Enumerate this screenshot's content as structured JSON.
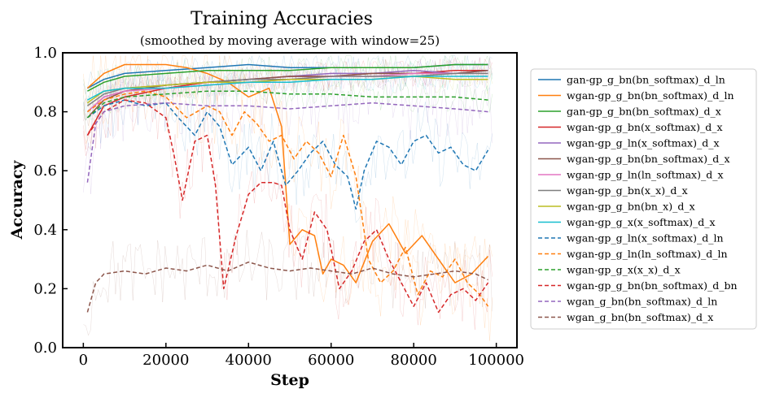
{
  "chart_data": {
    "type": "line",
    "title": "Training Accuracies",
    "subtitle": "(smoothed by moving average with window=25)",
    "xlabel": "Step",
    "ylabel": "Accuracy",
    "xlim": [
      -5000,
      105000
    ],
    "ylim": [
      0.0,
      1.0
    ],
    "xticks": [
      0,
      20000,
      40000,
      60000,
      80000,
      100000
    ],
    "xtick_labels": [
      "0",
      "20000",
      "40000",
      "60000",
      "80000",
      "100000"
    ],
    "yticks": [
      0.0,
      0.2,
      0.4,
      0.6,
      0.8,
      1.0
    ],
    "ytick_labels": [
      "0.0",
      "0.2",
      "0.4",
      "0.6",
      "0.8",
      "1.0"
    ],
    "grid": false,
    "legend_position": "right",
    "series": [
      {
        "name": "gan-gp_g_bn(bn_softmax)_d_ln",
        "color": "#1f77b4",
        "dash": "solid",
        "x": [
          1000,
          5000,
          10000,
          20000,
          30000,
          40000,
          50000,
          60000,
          70000,
          80000,
          90000,
          98000
        ],
        "y": [
          0.88,
          0.91,
          0.93,
          0.94,
          0.95,
          0.96,
          0.95,
          0.95,
          0.95,
          0.95,
          0.96,
          0.96
        ]
      },
      {
        "name": "wgan-gp_g_bn(bn_softmax)_d_ln",
        "color": "#ff7f0e",
        "dash": "solid",
        "x": [
          1000,
          5000,
          10000,
          15000,
          20000,
          25000,
          30000,
          35000,
          40000,
          45000,
          48000,
          50000,
          53000,
          56000,
          58000,
          60000,
          63000,
          66000,
          70000,
          74000,
          78000,
          82000,
          86000,
          90000,
          94000,
          98000
        ],
        "y": [
          0.88,
          0.93,
          0.96,
          0.96,
          0.96,
          0.95,
          0.93,
          0.9,
          0.85,
          0.88,
          0.75,
          0.35,
          0.4,
          0.38,
          0.25,
          0.3,
          0.28,
          0.22,
          0.36,
          0.42,
          0.32,
          0.38,
          0.3,
          0.22,
          0.25,
          0.31
        ]
      },
      {
        "name": "gan-gp_g_bn(bn_softmax)_d_x",
        "color": "#2ca02c",
        "dash": "solid",
        "x": [
          1000,
          5000,
          10000,
          20000,
          30000,
          40000,
          50000,
          60000,
          70000,
          80000,
          90000,
          98000
        ],
        "y": [
          0.87,
          0.9,
          0.92,
          0.93,
          0.94,
          0.94,
          0.94,
          0.95,
          0.95,
          0.95,
          0.96,
          0.96
        ]
      },
      {
        "name": "wgan-gp_g_bn(x_softmax)_d_x",
        "color": "#d62728",
        "dash": "solid",
        "x": [
          1000,
          5000,
          10000,
          20000,
          30000,
          40000,
          50000,
          60000,
          70000,
          80000,
          90000,
          98000
        ],
        "y": [
          0.72,
          0.82,
          0.85,
          0.88,
          0.9,
          0.91,
          0.92,
          0.92,
          0.93,
          0.93,
          0.94,
          0.94
        ]
      },
      {
        "name": "wgan-gp_g_ln(x_softmax)_d_x",
        "color": "#9467bd",
        "dash": "solid",
        "x": [
          1000,
          5000,
          10000,
          20000,
          30000,
          40000,
          50000,
          60000,
          70000,
          80000,
          90000,
          98000
        ],
        "y": [
          0.8,
          0.85,
          0.87,
          0.89,
          0.9,
          0.91,
          0.92,
          0.93,
          0.93,
          0.94,
          0.93,
          0.94
        ]
      },
      {
        "name": "wgan-gp_g_bn(bn_softmax)_d_x",
        "color": "#8c564b",
        "dash": "solid",
        "x": [
          1000,
          5000,
          10000,
          20000,
          30000,
          40000,
          50000,
          60000,
          70000,
          80000,
          90000,
          98000
        ],
        "y": [
          0.78,
          0.84,
          0.87,
          0.89,
          0.9,
          0.91,
          0.92,
          0.92,
          0.93,
          0.93,
          0.93,
          0.94
        ]
      },
      {
        "name": "wgan-gp_g_ln(ln_softmax)_d_x",
        "color": "#e377c2",
        "dash": "solid",
        "x": [
          1000,
          5000,
          10000,
          20000,
          30000,
          40000,
          50000,
          60000,
          70000,
          80000,
          90000,
          98000
        ],
        "y": [
          0.8,
          0.85,
          0.87,
          0.88,
          0.89,
          0.9,
          0.91,
          0.92,
          0.92,
          0.93,
          0.93,
          0.93
        ]
      },
      {
        "name": "wgan-gp_g_bn(x_x)_d_x",
        "color": "#7f7f7f",
        "dash": "solid",
        "x": [
          1000,
          5000,
          10000,
          20000,
          30000,
          40000,
          50000,
          60000,
          70000,
          80000,
          90000,
          98000
        ],
        "y": [
          0.82,
          0.86,
          0.88,
          0.89,
          0.9,
          0.91,
          0.91,
          0.92,
          0.92,
          0.92,
          0.93,
          0.93
        ]
      },
      {
        "name": "wgan-gp_g_bn(bn_x)_d_x",
        "color": "#bcbd22",
        "dash": "solid",
        "x": [
          1000,
          5000,
          10000,
          20000,
          30000,
          40000,
          50000,
          60000,
          70000,
          80000,
          90000,
          98000
        ],
        "y": [
          0.83,
          0.87,
          0.88,
          0.89,
          0.9,
          0.9,
          0.91,
          0.91,
          0.91,
          0.92,
          0.91,
          0.91
        ]
      },
      {
        "name": "wgan-gp_g_x(x_softmax)_d_x",
        "color": "#17becf",
        "dash": "solid",
        "x": [
          1000,
          5000,
          10000,
          20000,
          30000,
          40000,
          50000,
          60000,
          70000,
          80000,
          90000,
          98000
        ],
        "y": [
          0.84,
          0.87,
          0.88,
          0.88,
          0.89,
          0.9,
          0.9,
          0.91,
          0.91,
          0.92,
          0.92,
          0.92
        ]
      },
      {
        "name": "wgan-gp_g_ln(x_softmax)_d_ln",
        "color": "#1f77b4",
        "dash": "dashed",
        "x": [
          1000,
          5000,
          10000,
          15000,
          20000,
          23000,
          27000,
          30000,
          33000,
          36000,
          40000,
          43000,
          46000,
          49000,
          52000,
          55000,
          58000,
          61000,
          64000,
          66000,
          68000,
          71000,
          74000,
          77000,
          80000,
          83000,
          86000,
          89000,
          92000,
          95000,
          98000
        ],
        "y": [
          0.78,
          0.82,
          0.84,
          0.82,
          0.83,
          0.78,
          0.72,
          0.8,
          0.75,
          0.62,
          0.68,
          0.6,
          0.7,
          0.55,
          0.6,
          0.66,
          0.7,
          0.62,
          0.58,
          0.47,
          0.6,
          0.7,
          0.68,
          0.62,
          0.7,
          0.72,
          0.66,
          0.68,
          0.62,
          0.6,
          0.67
        ]
      },
      {
        "name": "wgan-gp_g_ln(ln_softmax)_d_ln",
        "color": "#ff7f0e",
        "dash": "dashed",
        "x": [
          1000,
          5000,
          10000,
          15000,
          20000,
          25000,
          30000,
          33000,
          36000,
          39000,
          42000,
          45000,
          48000,
          51000,
          54000,
          57000,
          60000,
          63000,
          66000,
          69000,
          72000,
          75000,
          78000,
          81000,
          84000,
          87000,
          90000,
          93000,
          96000,
          98000
        ],
        "y": [
          0.8,
          0.84,
          0.86,
          0.87,
          0.85,
          0.78,
          0.82,
          0.8,
          0.72,
          0.8,
          0.76,
          0.7,
          0.72,
          0.64,
          0.7,
          0.66,
          0.58,
          0.72,
          0.58,
          0.3,
          0.22,
          0.26,
          0.34,
          0.18,
          0.26,
          0.24,
          0.3,
          0.22,
          0.18,
          0.14
        ]
      },
      {
        "name": "wgan-gp_g_x(x_x)_d_x",
        "color": "#2ca02c",
        "dash": "dashed",
        "x": [
          1000,
          5000,
          10000,
          20000,
          30000,
          40000,
          50000,
          60000,
          70000,
          80000,
          90000,
          98000
        ],
        "y": [
          0.78,
          0.83,
          0.85,
          0.86,
          0.87,
          0.87,
          0.86,
          0.86,
          0.85,
          0.85,
          0.85,
          0.84
        ]
      },
      {
        "name": "wgan-gp_g_bn(bn_softmax)_d_bn",
        "color": "#d62728",
        "dash": "dashed",
        "x": [
          1000,
          5000,
          10000,
          15000,
          20000,
          22000,
          24000,
          27000,
          30000,
          32000,
          34000,
          37000,
          40000,
          43000,
          46000,
          48000,
          50000,
          53000,
          56000,
          59000,
          62000,
          65000,
          68000,
          71000,
          74000,
          77000,
          80000,
          83000,
          86000,
          89000,
          92000,
          95000,
          98000
        ],
        "y": [
          0.72,
          0.8,
          0.84,
          0.83,
          0.78,
          0.65,
          0.5,
          0.7,
          0.72,
          0.55,
          0.2,
          0.38,
          0.52,
          0.56,
          0.56,
          0.55,
          0.4,
          0.3,
          0.46,
          0.4,
          0.2,
          0.26,
          0.36,
          0.4,
          0.3,
          0.22,
          0.14,
          0.22,
          0.12,
          0.18,
          0.2,
          0.16,
          0.22
        ]
      },
      {
        "name": "wgan_g_bn(bn_softmax)_d_ln",
        "color": "#9467bd",
        "dash": "dashed",
        "x": [
          1000,
          3000,
          5000,
          10000,
          20000,
          30000,
          40000,
          50000,
          60000,
          70000,
          80000,
          90000,
          98000
        ],
        "y": [
          0.56,
          0.76,
          0.8,
          0.82,
          0.83,
          0.82,
          0.82,
          0.81,
          0.82,
          0.83,
          0.82,
          0.81,
          0.8
        ]
      },
      {
        "name": "wgan_g_bn(bn_softmax)_d_x",
        "color": "#8c564b",
        "dash": "dashed",
        "x": [
          1000,
          3000,
          5000,
          10000,
          15000,
          20000,
          25000,
          30000,
          35000,
          40000,
          45000,
          50000,
          55000,
          60000,
          65000,
          70000,
          75000,
          80000,
          85000,
          90000,
          95000,
          98000
        ],
        "y": [
          0.12,
          0.22,
          0.25,
          0.26,
          0.25,
          0.27,
          0.26,
          0.28,
          0.26,
          0.29,
          0.27,
          0.26,
          0.27,
          0.26,
          0.25,
          0.27,
          0.25,
          0.24,
          0.25,
          0.26,
          0.25,
          0.23
        ]
      }
    ]
  }
}
